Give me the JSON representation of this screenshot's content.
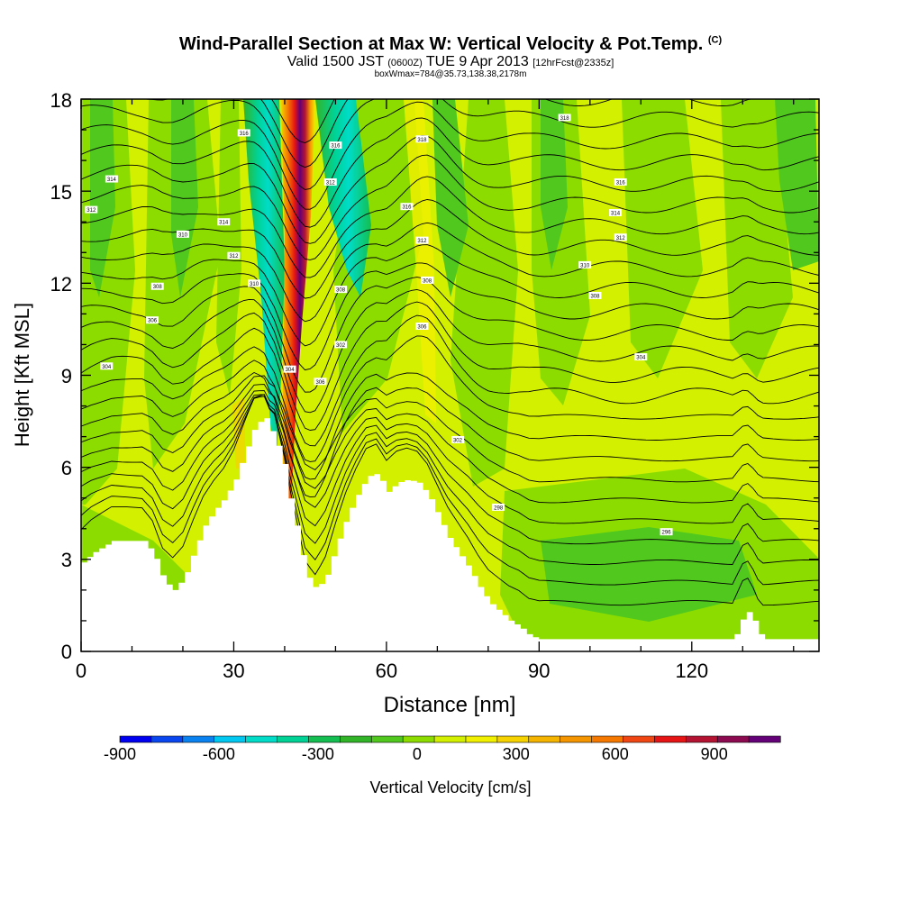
{
  "chart_data": {
    "type": "heatmap",
    "title": "Wind-Parallel Section at Max W: Vertical Velocity & Pot.Temp.",
    "title_tag": "(C)",
    "subtitle_main": "Valid 1500 JST",
    "subtitle_utc": "(0600Z)",
    "subtitle_date": "TUE 9 Apr 2013",
    "subtitle_fcst": "[12hrFcst@2335z]",
    "subtitle2": "boxWmax=784@35.73,138.38,2178m",
    "xlabel": "Distance [nm]",
    "ylabel": "Height [Kft MSL]",
    "xlim": [
      0,
      145
    ],
    "ylim": [
      0,
      18
    ],
    "xticks": [
      "0",
      "30",
      "60",
      "90",
      "120"
    ],
    "yticks": [
      "0",
      "3",
      "6",
      "9",
      "12",
      "15",
      "18"
    ],
    "colorbar": {
      "label": "Vertical Velocity [cm/s]",
      "range": [
        -900,
        1100
      ],
      "tick_labels": [
        "-900",
        "-600",
        "-300",
        "0",
        "300",
        "600",
        "900"
      ],
      "colors": [
        "#0000f0",
        "#0a46f0",
        "#0a82f0",
        "#00c8f0",
        "#00dcc8",
        "#00d296",
        "#14be50",
        "#32b428",
        "#50c81e",
        "#8cdc00",
        "#d2f000",
        "#f0f000",
        "#f5d200",
        "#f5b400",
        "#f59600",
        "#f57800",
        "#f04614",
        "#e61414",
        "#b41432",
        "#8c0a50",
        "#640078"
      ]
    },
    "terrain": {
      "x_nm": [
        0,
        2,
        6,
        12,
        14,
        16,
        18,
        20,
        22,
        24,
        26,
        28,
        30,
        32,
        34,
        36,
        37,
        38,
        38.5,
        39.5,
        41,
        42,
        43,
        44,
        46,
        48,
        50,
        52,
        54,
        56,
        58,
        60,
        62,
        64,
        66,
        68,
        70,
        72,
        74,
        76,
        78,
        80,
        82,
        84,
        86,
        88,
        90,
        92,
        96,
        100,
        104,
        108,
        112,
        116,
        120,
        124,
        128,
        129,
        130,
        131,
        132,
        133,
        134,
        145
      ],
      "height_kft": [
        2.9,
        3.2,
        3.6,
        3.6,
        3.2,
        2.3,
        2.0,
        2.4,
        3.3,
        4.1,
        4.6,
        5.0,
        5.6,
        6.5,
        7.4,
        7.6,
        7.2,
        7.1,
        6.6,
        6.2,
        4.8,
        4.1,
        3.3,
        2.5,
        2.0,
        2.5,
        3.5,
        4.4,
        5.1,
        5.7,
        5.8,
        5.2,
        5.5,
        5.6,
        5.5,
        5.1,
        4.4,
        3.7,
        3.2,
        2.7,
        2.1,
        1.6,
        1.3,
        1.0,
        0.8,
        0.5,
        0.4,
        0.4,
        0.4,
        0.4,
        0.4,
        0.4,
        0.4,
        0.4,
        0.4,
        0.4,
        0.4,
        0.8,
        1.2,
        1.3,
        1.0,
        0.6,
        0.4,
        0.4
      ]
    },
    "vertical_velocity_features_cms": [
      {
        "kind": "updraft",
        "x_nm": 41.5,
        "height_kft": [
          4,
          18
        ],
        "peak": 900
      },
      {
        "kind": "downdraft",
        "x_nm": 36.5,
        "height_kft": [
          7,
          18
        ],
        "peak": -500
      },
      {
        "kind": "downdraft",
        "x_nm": 48.5,
        "height_kft": [
          10,
          18
        ],
        "peak": -250
      },
      {
        "kind": "weak-updraft",
        "x_nm": 64,
        "height_kft": [
          6,
          17
        ],
        "peak": 150
      }
    ],
    "theta_contour_labels": [
      {
        "text": "314",
        "x_nm": 6,
        "y_kft": 15.4
      },
      {
        "text": "312",
        "x_nm": 2,
        "y_kft": 14.4
      },
      {
        "text": "310",
        "x_nm": 20,
        "y_kft": 13.6
      },
      {
        "text": "308",
        "x_nm": 15,
        "y_kft": 11.9
      },
      {
        "text": "306",
        "x_nm": 14,
        "y_kft": 10.8
      },
      {
        "text": "304",
        "x_nm": 5,
        "y_kft": 9.3
      },
      {
        "text": "316",
        "x_nm": 32,
        "y_kft": 16.9
      },
      {
        "text": "314",
        "x_nm": 28,
        "y_kft": 14.0
      },
      {
        "text": "312",
        "x_nm": 30,
        "y_kft": 12.9
      },
      {
        "text": "310",
        "x_nm": 34,
        "y_kft": 12.0
      },
      {
        "text": "316",
        "x_nm": 50,
        "y_kft": 16.5
      },
      {
        "text": "312",
        "x_nm": 49,
        "y_kft": 15.3
      },
      {
        "text": "308",
        "x_nm": 51,
        "y_kft": 11.8
      },
      {
        "text": "306",
        "x_nm": 47,
        "y_kft": 8.8
      },
      {
        "text": "304",
        "x_nm": 41,
        "y_kft": 9.2
      },
      {
        "text": "302",
        "x_nm": 51,
        "y_kft": 10.0
      },
      {
        "text": "318",
        "x_nm": 67,
        "y_kft": 16.7
      },
      {
        "text": "316",
        "x_nm": 64,
        "y_kft": 14.5
      },
      {
        "text": "312",
        "x_nm": 67,
        "y_kft": 13.4
      },
      {
        "text": "308",
        "x_nm": 68,
        "y_kft": 12.1
      },
      {
        "text": "306",
        "x_nm": 67,
        "y_kft": 10.6
      },
      {
        "text": "302",
        "x_nm": 74,
        "y_kft": 6.9
      },
      {
        "text": "298",
        "x_nm": 82,
        "y_kft": 4.7
      },
      {
        "text": "318",
        "x_nm": 95,
        "y_kft": 17.4
      },
      {
        "text": "316",
        "x_nm": 106,
        "y_kft": 15.3
      },
      {
        "text": "314",
        "x_nm": 105,
        "y_kft": 14.3
      },
      {
        "text": "312",
        "x_nm": 106,
        "y_kft": 13.5
      },
      {
        "text": "310",
        "x_nm": 99,
        "y_kft": 12.6
      },
      {
        "text": "308",
        "x_nm": 101,
        "y_kft": 11.6
      },
      {
        "text": "304",
        "x_nm": 110,
        "y_kft": 9.6
      },
      {
        "text": "296",
        "x_nm": 115,
        "y_kft": 3.9
      }
    ]
  }
}
